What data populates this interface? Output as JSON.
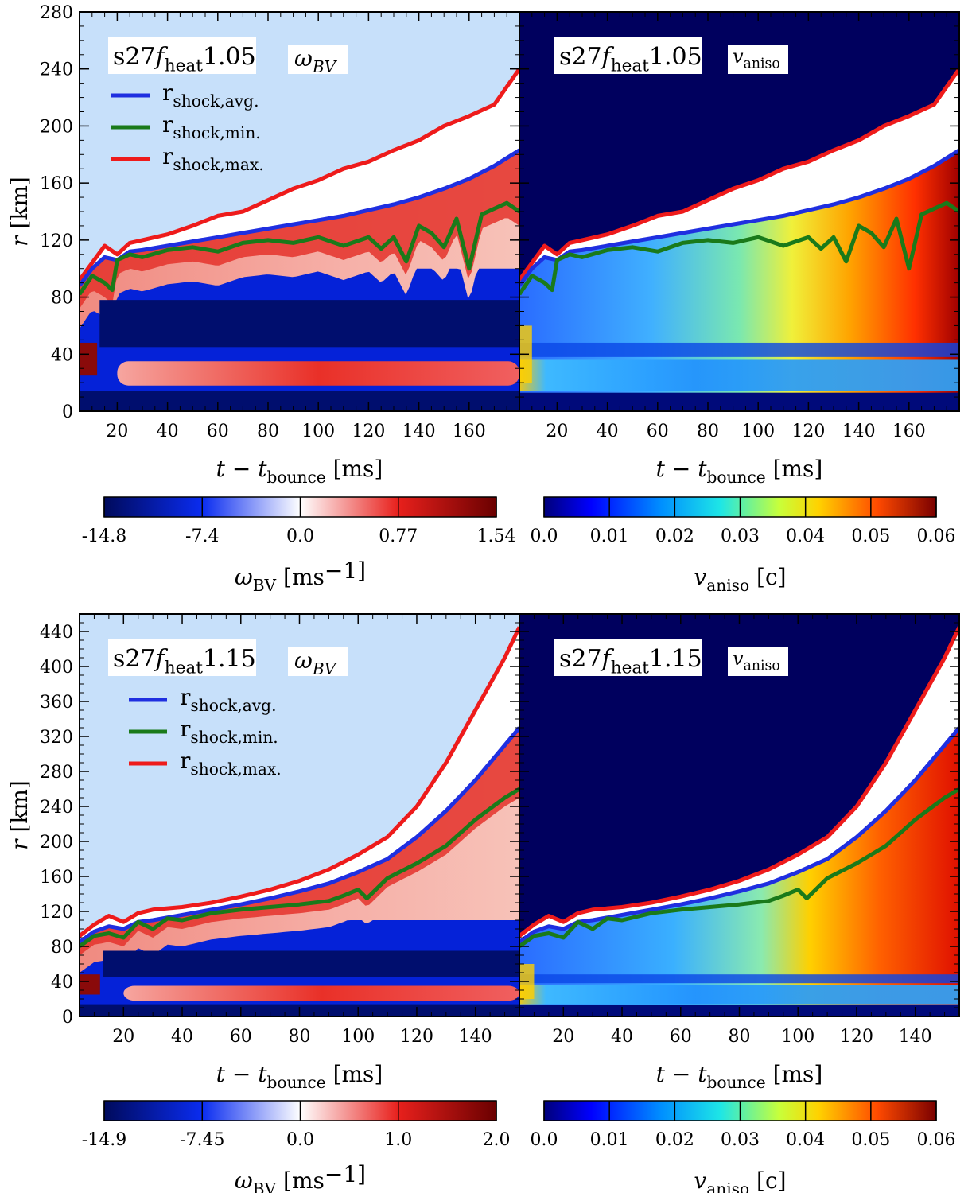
{
  "chart_data": [
    {
      "type": "heatmap",
      "model": "s27fheat1.05",
      "quantity": "ωBV",
      "xlabel": "t − tbounce [ms]",
      "ylabel": "r [km]",
      "xlim": [
        5,
        180
      ],
      "ylim": [
        0,
        280
      ],
      "xticks": [
        20,
        40,
        60,
        80,
        100,
        120,
        140,
        160
      ],
      "yticks": [
        0,
        40,
        80,
        120,
        160,
        200,
        240,
        280
      ],
      "legend": [
        "rshock,avg.",
        "rshock,min.",
        "rshock,max."
      ],
      "colorbar": {
        "label": "ωBV [ms−1]",
        "ticks": [
          "-14.8",
          "-7.4",
          "0.0",
          "0.77",
          "1.54"
        ]
      },
      "series": [
        {
          "name": "rshock,avg.",
          "color": "#1f2fe0",
          "x": [
            5,
            10,
            15,
            20,
            25,
            30,
            40,
            50,
            60,
            70,
            80,
            90,
            100,
            110,
            120,
            130,
            140,
            150,
            160,
            170,
            180
          ],
          "y": [
            88,
            100,
            108,
            106,
            112,
            113,
            116,
            119,
            122,
            125,
            128,
            131,
            134,
            137,
            141,
            145,
            150,
            156,
            163,
            172,
            183
          ]
        },
        {
          "name": "rshock,min.",
          "color": "#1a7a1a",
          "x": [
            5,
            10,
            15,
            18,
            20,
            25,
            30,
            40,
            50,
            60,
            70,
            80,
            90,
            100,
            110,
            120,
            125,
            130,
            135,
            140,
            145,
            150,
            155,
            160,
            165,
            170,
            175,
            180
          ],
          "y": [
            82,
            95,
            90,
            85,
            106,
            110,
            108,
            113,
            115,
            112,
            118,
            120,
            118,
            122,
            116,
            122,
            114,
            122,
            105,
            130,
            125,
            115,
            135,
            100,
            138,
            142,
            146,
            140
          ]
        },
        {
          "name": "rshock,max.",
          "color": "#ee1b1b",
          "x": [
            5,
            10,
            15,
            20,
            25,
            30,
            40,
            50,
            60,
            70,
            80,
            90,
            100,
            110,
            120,
            130,
            140,
            150,
            160,
            170,
            180
          ],
          "y": [
            92,
            104,
            116,
            110,
            118,
            120,
            124,
            130,
            137,
            140,
            148,
            156,
            162,
            170,
            175,
            183,
            190,
            200,
            207,
            215,
            240
          ]
        }
      ]
    },
    {
      "type": "heatmap",
      "model": "s27fheat1.05",
      "quantity": "vaniso",
      "xlabel": "t − tbounce [ms]",
      "xlim": [
        5,
        180
      ],
      "ylim": [
        0,
        280
      ],
      "xticks": [
        20,
        40,
        60,
        80,
        100,
        120,
        140,
        160
      ],
      "colorbar": {
        "label": "vaniso [c]",
        "ticks": [
          "0.0",
          "0.01",
          "0.02",
          "0.03",
          "0.04",
          "0.05",
          "0.06"
        ]
      }
    },
    {
      "type": "heatmap",
      "model": "s27fheat1.15",
      "quantity": "ωBV",
      "xlabel": "t − tbounce [ms]",
      "ylabel": "r [km]",
      "xlim": [
        5,
        155
      ],
      "ylim": [
        0,
        460
      ],
      "xticks": [
        20,
        40,
        60,
        80,
        100,
        120,
        140
      ],
      "yticks": [
        0,
        40,
        80,
        120,
        160,
        200,
        240,
        280,
        320,
        360,
        400,
        440
      ],
      "legend": [
        "rshock,avg.",
        "rshock,min.",
        "rshock,max."
      ],
      "colorbar": {
        "label": "ωBV [ms−1]",
        "ticks": [
          "-14.9",
          "-7.45",
          "0.0",
          "1.0",
          "2.0"
        ]
      },
      "series": [
        {
          "name": "rshock,avg.",
          "color": "#1f2fe0",
          "x": [
            5,
            10,
            15,
            20,
            25,
            30,
            40,
            50,
            60,
            70,
            80,
            90,
            100,
            110,
            120,
            130,
            140,
            150,
            155
          ],
          "y": [
            85,
            97,
            103,
            100,
            108,
            110,
            116,
            122,
            128,
            135,
            143,
            152,
            165,
            180,
            205,
            235,
            270,
            310,
            330
          ]
        },
        {
          "name": "rshock,min.",
          "color": "#1a7a1a",
          "x": [
            5,
            10,
            15,
            20,
            25,
            30,
            35,
            40,
            50,
            60,
            70,
            80,
            90,
            95,
            100,
            103,
            110,
            120,
            130,
            140,
            150,
            155
          ],
          "y": [
            80,
            92,
            95,
            90,
            108,
            100,
            112,
            110,
            118,
            122,
            125,
            128,
            132,
            138,
            145,
            135,
            158,
            175,
            195,
            225,
            250,
            260
          ]
        },
        {
          "name": "rshock,max.",
          "color": "#ee1b1b",
          "x": [
            5,
            10,
            15,
            20,
            25,
            30,
            40,
            50,
            60,
            70,
            80,
            90,
            100,
            110,
            120,
            130,
            140,
            150,
            155
          ],
          "y": [
            92,
            105,
            115,
            108,
            118,
            122,
            125,
            130,
            137,
            145,
            155,
            168,
            185,
            205,
            240,
            290,
            350,
            410,
            445
          ]
        }
      ]
    },
    {
      "type": "heatmap",
      "model": "s27fheat1.15",
      "quantity": "vaniso",
      "xlabel": "t − tbounce [ms]",
      "xlim": [
        5,
        155
      ],
      "ylim": [
        0,
        460
      ],
      "xticks": [
        20,
        40,
        60,
        80,
        100,
        120,
        140
      ],
      "colorbar": {
        "label": "vaniso [c]",
        "ticks": [
          "0.0",
          "0.01",
          "0.02",
          "0.03",
          "0.04",
          "0.05",
          "0.06"
        ]
      }
    }
  ]
}
